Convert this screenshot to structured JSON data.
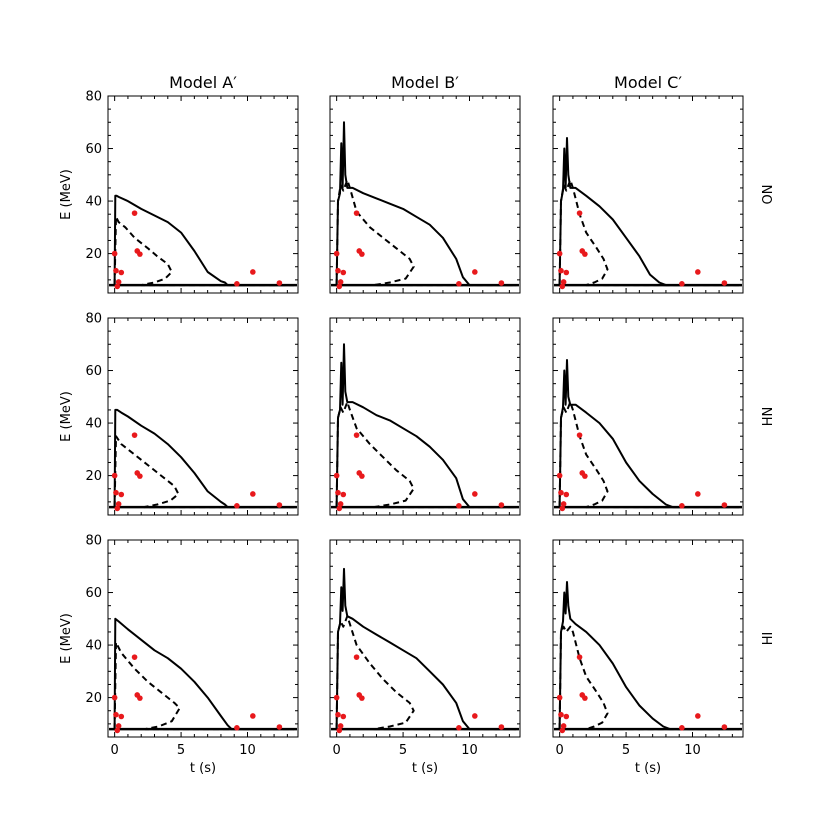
{
  "chart_data": {
    "type": "line",
    "title": "",
    "columns": [
      "Model A′",
      "Model B′",
      "Model C′"
    ],
    "rows": [
      "NO",
      "NH",
      "IH"
    ],
    "xlabel": "t (s)",
    "ylabel": "E (MeV)",
    "xlim": [
      -0.5,
      13.8
    ],
    "ylim": [
      5,
      80
    ],
    "xticks": [
      0,
      5,
      10
    ],
    "yticks": [
      20,
      40,
      60,
      80
    ],
    "colors": {
      "curve": "#000000",
      "points": "#e8191c"
    },
    "observed_points": [
      {
        "t": 0.0,
        "E": 20.0
      },
      {
        "t": 0.1,
        "E": 13.5
      },
      {
        "t": 0.2,
        "E": 7.5
      },
      {
        "t": 0.3,
        "E": 9.2
      },
      {
        "t": 0.5,
        "E": 12.8
      },
      {
        "t": 1.5,
        "E": 35.4
      },
      {
        "t": 1.7,
        "E": 21.0
      },
      {
        "t": 1.9,
        "E": 19.8
      },
      {
        "t": 9.2,
        "E": 8.5
      },
      {
        "t": 10.4,
        "E": 13.0
      },
      {
        "t": 12.4,
        "E": 8.8
      }
    ],
    "series": [
      {
        "name": "A′ NO upper",
        "style": "solid",
        "x": [
          0.0,
          0.05,
          0.15,
          0.3,
          1,
          2,
          3,
          4,
          5,
          6,
          7,
          8,
          8.3,
          8.5,
          13.5
        ],
        "y": [
          8,
          42,
          42,
          41.6,
          40,
          37,
          34.5,
          32,
          28,
          21,
          13,
          9.5,
          9,
          8,
          8
        ]
      },
      {
        "name": "A′ NO lower",
        "style": "dashed",
        "x": [
          0.0,
          0.1,
          0.3,
          0.8,
          1.5,
          2.5,
          3.2,
          4.0,
          4.3,
          3.8,
          3.0,
          2.0,
          13.5
        ],
        "y": [
          8,
          34,
          32,
          30,
          26,
          22,
          19,
          16,
          13,
          10.5,
          9,
          8,
          8
        ]
      },
      {
        "name": "A′ NH upper",
        "style": "solid",
        "x": [
          0.0,
          0.05,
          0.2,
          0.5,
          1,
          2,
          3,
          4,
          5,
          6,
          7,
          8,
          8.3,
          8.5,
          13.5
        ],
        "y": [
          8,
          45,
          45,
          44,
          42.5,
          39,
          36,
          32,
          27,
          21,
          14,
          10,
          9,
          8,
          8
        ]
      },
      {
        "name": "A′ NH lower",
        "style": "dashed",
        "x": [
          0.0,
          0.1,
          0.5,
          1.5,
          2.5,
          3.5,
          4.5,
          4.8,
          4.2,
          3.2,
          2.2,
          13.5
        ],
        "y": [
          8,
          35,
          32,
          28,
          24,
          20,
          16,
          13,
          10.5,
          9,
          8,
          8
        ]
      },
      {
        "name": "A′ IH upper",
        "style": "solid",
        "x": [
          0.0,
          0.05,
          0.3,
          1,
          2,
          3,
          4,
          5,
          6,
          7,
          8,
          8.5,
          8.8,
          13.5
        ],
        "y": [
          8,
          50,
          49,
          46,
          42,
          38,
          35,
          31,
          26,
          20,
          13,
          9.5,
          8,
          8
        ]
      },
      {
        "name": "A′ IH lower",
        "style": "dashed",
        "x": [
          0.0,
          0.1,
          0.5,
          1.5,
          2.5,
          3.5,
          4.5,
          4.9,
          4.3,
          3.3,
          2.3,
          13.5
        ],
        "y": [
          8,
          41,
          37,
          31,
          26,
          22,
          18,
          16,
          11,
          9,
          8,
          8
        ]
      },
      {
        "name": "B′ NO upper",
        "style": "solid",
        "x": [
          0.0,
          0.1,
          0.25,
          0.35,
          0.45,
          0.55,
          0.65,
          0.8,
          1.2,
          2,
          3,
          4,
          5,
          6,
          7,
          8,
          9,
          9.5,
          10,
          13.5
        ],
        "y": [
          8,
          40,
          43,
          62,
          45,
          70,
          50,
          45,
          45,
          43,
          41,
          39,
          37,
          34,
          31,
          26,
          18,
          11,
          8,
          8
        ]
      },
      {
        "name": "B′ NO lower",
        "style": "dashed",
        "x": [
          0.0,
          0.1,
          0.3,
          0.5,
          0.8,
          1.0,
          1.5,
          2.5,
          3.5,
          4.5,
          5.5,
          5.8,
          5.2,
          4.0,
          2.8,
          13.5
        ],
        "y": [
          8,
          40,
          46,
          44,
          48,
          45,
          36,
          30,
          26,
          22,
          18,
          15,
          10.5,
          9,
          8,
          8
        ]
      },
      {
        "name": "B′ NH upper",
        "style": "solid",
        "x": [
          0.0,
          0.1,
          0.25,
          0.35,
          0.45,
          0.55,
          0.65,
          0.8,
          1.2,
          2,
          3,
          4,
          5,
          6,
          7,
          8,
          9,
          9.5,
          10,
          13.5
        ],
        "y": [
          8,
          42,
          45,
          63,
          47,
          70,
          52,
          48,
          48,
          46,
          43,
          41,
          38,
          35,
          31,
          26,
          19,
          11,
          8,
          8
        ]
      },
      {
        "name": "B′ NH lower",
        "style": "dashed",
        "x": [
          0.0,
          0.1,
          0.3,
          0.5,
          0.8,
          1.0,
          1.5,
          2.5,
          3.5,
          4.5,
          5.5,
          5.8,
          5.2,
          4.0,
          2.8,
          13.5
        ],
        "y": [
          8,
          42,
          46,
          44,
          48,
          45,
          38,
          32,
          27,
          22,
          18,
          15,
          10.5,
          9,
          8,
          8
        ]
      },
      {
        "name": "B′ IH upper",
        "style": "solid",
        "x": [
          0.0,
          0.1,
          0.25,
          0.35,
          0.45,
          0.55,
          0.65,
          0.8,
          1.2,
          2,
          3,
          4,
          5,
          6,
          7,
          8,
          9,
          9.5,
          10,
          13.5
        ],
        "y": [
          8,
          45,
          48,
          62,
          53,
          69,
          55,
          51,
          50,
          47,
          44,
          41,
          38,
          35,
          30,
          25,
          18,
          11,
          8,
          8
        ]
      },
      {
        "name": "B′ IH lower",
        "style": "dashed",
        "x": [
          0.0,
          0.1,
          0.3,
          0.5,
          0.8,
          1.0,
          1.5,
          2.5,
          3.5,
          4.5,
          5.5,
          5.8,
          5.2,
          4.0,
          2.8,
          13.5
        ],
        "y": [
          8,
          45,
          49,
          47,
          51,
          48,
          40,
          33,
          27,
          22,
          18,
          15,
          10.5,
          9,
          8,
          8
        ]
      },
      {
        "name": "C′ NO upper",
        "style": "solid",
        "x": [
          0.0,
          0.1,
          0.25,
          0.35,
          0.45,
          0.55,
          0.65,
          0.8,
          1.2,
          2,
          3,
          4,
          5,
          6,
          6.8,
          7.5,
          8,
          13.5
        ],
        "y": [
          8,
          40,
          44,
          60,
          45,
          64,
          50,
          45,
          45,
          42,
          38,
          33,
          26,
          19,
          12,
          9,
          8,
          8
        ]
      },
      {
        "name": "C′ NO lower",
        "style": "dashed",
        "x": [
          0.0,
          0.1,
          0.3,
          0.5,
          0.8,
          1.0,
          1.5,
          2.0,
          2.8,
          3.3,
          3.6,
          3.2,
          2.6,
          2.0,
          13.5
        ],
        "y": [
          8,
          40,
          46,
          44,
          48,
          45,
          35,
          28,
          22,
          18,
          14,
          10.5,
          9,
          8,
          8
        ]
      },
      {
        "name": "C′ NH upper",
        "style": "solid",
        "x": [
          0.0,
          0.1,
          0.25,
          0.35,
          0.45,
          0.55,
          0.65,
          0.8,
          1.2,
          2,
          3,
          4,
          5,
          6,
          7,
          8,
          8.5,
          13.5
        ],
        "y": [
          8,
          42,
          46,
          60,
          47,
          64,
          50,
          47,
          47,
          44,
          40,
          34,
          25,
          18,
          13,
          9,
          8,
          8
        ]
      },
      {
        "name": "C′ NH lower",
        "style": "dashed",
        "x": [
          0.0,
          0.1,
          0.3,
          0.5,
          0.8,
          1.0,
          1.5,
          2.0,
          2.8,
          3.3,
          3.6,
          3.2,
          2.6,
          2.0,
          13.5
        ],
        "y": [
          8,
          42,
          46,
          44,
          48,
          45,
          35,
          28,
          22,
          18,
          14,
          10.5,
          9,
          8,
          8
        ]
      },
      {
        "name": "C′ IH upper",
        "style": "solid",
        "x": [
          0.0,
          0.1,
          0.25,
          0.35,
          0.45,
          0.55,
          0.65,
          0.8,
          1.2,
          2,
          3,
          4,
          5,
          6,
          7,
          7.8,
          8.3,
          13.5
        ],
        "y": [
          8,
          45,
          49,
          60,
          52,
          64,
          55,
          50,
          48,
          45,
          40,
          33,
          24,
          17,
          12,
          9,
          8,
          8
        ]
      },
      {
        "name": "C′ IH lower",
        "style": "dashed",
        "x": [
          0.0,
          0.1,
          0.3,
          0.5,
          0.8,
          1.0,
          1.5,
          2.0,
          2.8,
          3.3,
          3.6,
          3.2,
          2.6,
          2.0,
          13.5
        ],
        "y": [
          8,
          45,
          47,
          45,
          47,
          45,
          35,
          28,
          22,
          18,
          14,
          10.5,
          9,
          8,
          8
        ]
      }
    ]
  }
}
